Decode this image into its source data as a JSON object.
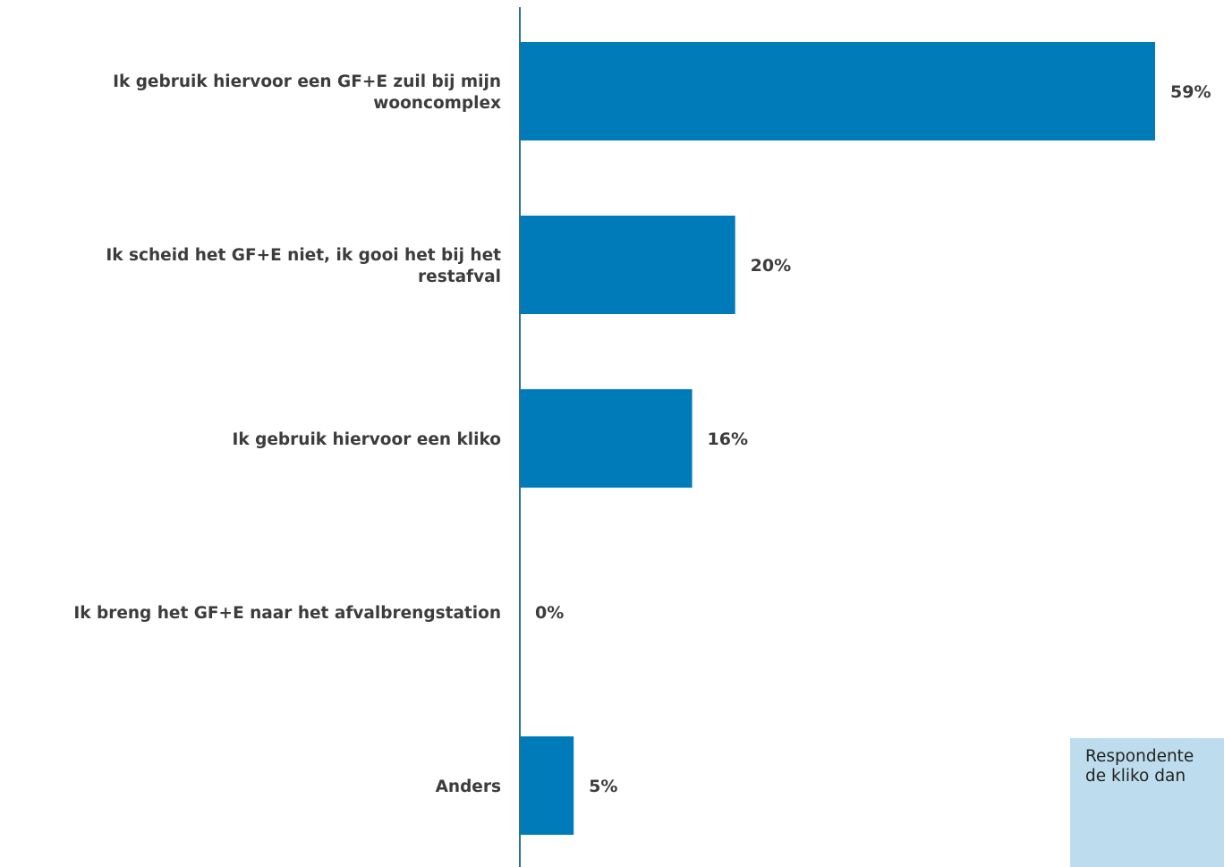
{
  "chart_data": {
    "type": "bar",
    "orientation": "horizontal",
    "categories": [
      [
        "Ik gebruik hiervoor een GF+E zuil bij mijn",
        "wooncomplex"
      ],
      [
        "Ik scheid het GF+E niet, ik gooi het bij het",
        "restafval"
      ],
      [
        "Ik gebruik hiervoor een kliko"
      ],
      [
        "Ik breng het GF+E naar het afvalbrengstation"
      ],
      [
        "Anders"
      ]
    ],
    "values": [
      59,
      20,
      16,
      0,
      5
    ],
    "value_labels": [
      "59%",
      "20%",
      "16%",
      "0%",
      "5%"
    ],
    "xlim": [
      0,
      59
    ],
    "grid": false,
    "bar_color": "#007bba",
    "label_color": "#3c3c3c",
    "axis_color": "#2e6f96"
  },
  "note": {
    "lines": [
      "Respondente",
      "de kliko dan"
    ],
    "background": "#bdddee"
  }
}
